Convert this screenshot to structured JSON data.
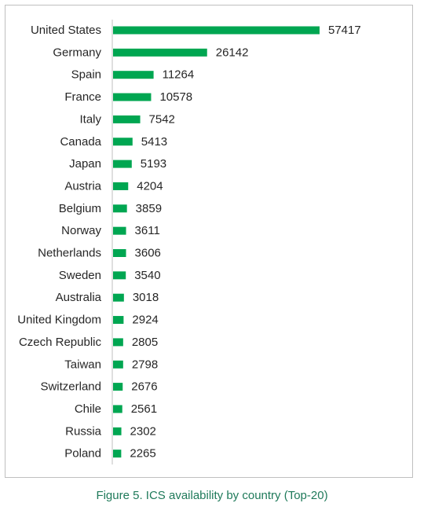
{
  "caption": "Figure 5. ICS availability by country (Top-20)",
  "colors": {
    "bar": "#00a651",
    "axis": "#bfbfbf",
    "caption": "#1f7a5a"
  },
  "chart_data": {
    "type": "bar",
    "orientation": "horizontal",
    "title": "",
    "xlabel": "",
    "ylabel": "",
    "categories": [
      "United States",
      "Germany",
      "Spain",
      "France",
      "Italy",
      "Canada",
      "Japan",
      "Austria",
      "Belgium",
      "Norway",
      "Netherlands",
      "Sweden",
      "Australia",
      "United Kingdom",
      "Czech Republic",
      "Taiwan",
      "Switzerland",
      "Chile",
      "Russia",
      "Poland"
    ],
    "values": [
      57417,
      26142,
      11264,
      10578,
      7542,
      5413,
      5193,
      4204,
      3859,
      3611,
      3606,
      3540,
      3018,
      2924,
      2805,
      2798,
      2676,
      2561,
      2302,
      2265
    ],
    "xlim": [
      0,
      57417
    ],
    "grid": false,
    "legend": "none",
    "data_labels": true
  }
}
